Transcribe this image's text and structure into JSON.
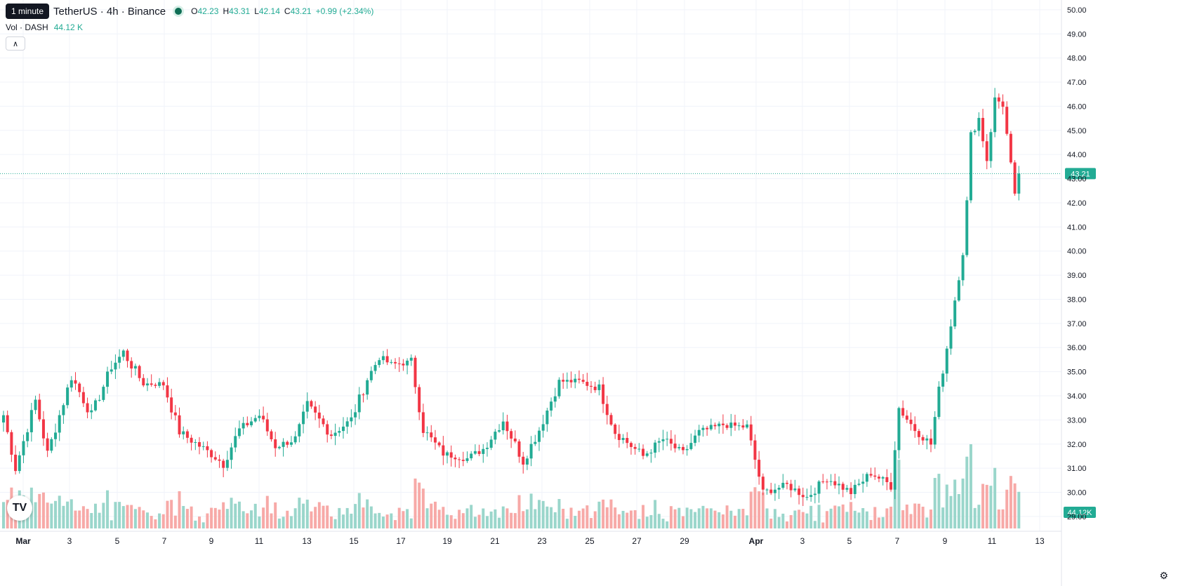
{
  "header": {
    "tooltip": "1 minute",
    "title": "TetherUS · 4h · Binance",
    "ohlc": {
      "o_label": "O",
      "o": "42.23",
      "h_label": "H",
      "h": "43.31",
      "l_label": "L",
      "l": "42.14",
      "c_label": "C",
      "c": "43.21",
      "change": "+0.99 (+2.34%)"
    },
    "volume_label": "Vol · DASH",
    "volume_value": "44.12 K"
  },
  "logo": {
    "icon": "tradingview-logo-icon",
    "text": "TV"
  },
  "settings_icon": "gear-icon",
  "colors": {
    "up": "#22ab94",
    "down": "#f23645",
    "vol_up": "#9ad6cb",
    "vol_down": "#f7a9a7",
    "grid": "#f0f3fa",
    "price_line": "#22ab94"
  },
  "chart_data": {
    "type": "candlestick",
    "timeframe": "4h",
    "ylim": [
      28.3,
      50.2
    ],
    "y_ticks": [
      "50.00",
      "49.00",
      "48.00",
      "47.00",
      "46.00",
      "45.00",
      "44.00",
      "43.00",
      "42.00",
      "41.00",
      "40.00",
      "39.00",
      "38.00",
      "37.00",
      "36.00",
      "35.00",
      "34.00",
      "33.00",
      "32.00",
      "31.00",
      "30.00",
      "29.00"
    ],
    "x_ticks": [
      {
        "label": "Mar",
        "bold": true
      },
      {
        "label": "3"
      },
      {
        "label": "5"
      },
      {
        "label": "7"
      },
      {
        "label": "9"
      },
      {
        "label": "11"
      },
      {
        "label": "13"
      },
      {
        "label": "15"
      },
      {
        "label": "17"
      },
      {
        "label": "19"
      },
      {
        "label": "21"
      },
      {
        "label": "23"
      },
      {
        "label": "25"
      },
      {
        "label": "27"
      },
      {
        "label": "29"
      },
      {
        "label": "Apr",
        "bold": true
      },
      {
        "label": "3"
      },
      {
        "label": "5"
      },
      {
        "label": "7"
      },
      {
        "label": "9"
      },
      {
        "label": "11"
      },
      {
        "label": "13"
      }
    ],
    "current_price": "43.21",
    "current_volume": "44.12K",
    "anchors": [
      {
        "bar": 0,
        "price": 33.2
      },
      {
        "bar": 3,
        "price": 31.0
      },
      {
        "bar": 8,
        "price": 33.8
      },
      {
        "bar": 11,
        "price": 31.6
      },
      {
        "bar": 17,
        "price": 34.8
      },
      {
        "bar": 22,
        "price": 33.2
      },
      {
        "bar": 27,
        "price": 35.2
      },
      {
        "bar": 30,
        "price": 35.8
      },
      {
        "bar": 35,
        "price": 34.5
      },
      {
        "bar": 40,
        "price": 34.5
      },
      {
        "bar": 44,
        "price": 32.5
      },
      {
        "bar": 51,
        "price": 31.7
      },
      {
        "bar": 55,
        "price": 31.2
      },
      {
        "bar": 59,
        "price": 32.6
      },
      {
        "bar": 64,
        "price": 33.2
      },
      {
        "bar": 68,
        "price": 31.9
      },
      {
        "bar": 73,
        "price": 32.2
      },
      {
        "bar": 76,
        "price": 33.6
      },
      {
        "bar": 82,
        "price": 32.4
      },
      {
        "bar": 87,
        "price": 33.0
      },
      {
        "bar": 91,
        "price": 34.7
      },
      {
        "bar": 94,
        "price": 35.6
      },
      {
        "bar": 97,
        "price": 35.3
      },
      {
        "bar": 102,
        "price": 35.4
      },
      {
        "bar": 105,
        "price": 32.6
      },
      {
        "bar": 110,
        "price": 31.6
      },
      {
        "bar": 116,
        "price": 31.4
      },
      {
        "bar": 120,
        "price": 31.8
      },
      {
        "bar": 125,
        "price": 33.0
      },
      {
        "bar": 130,
        "price": 31.3
      },
      {
        "bar": 134,
        "price": 32.6
      },
      {
        "bar": 139,
        "price": 34.6
      },
      {
        "bar": 144,
        "price": 34.6
      },
      {
        "bar": 149,
        "price": 34.3
      },
      {
        "bar": 153,
        "price": 32.5
      },
      {
        "bar": 160,
        "price": 31.5
      },
      {
        "bar": 165,
        "price": 32.2
      },
      {
        "bar": 170,
        "price": 31.6
      },
      {
        "bar": 174,
        "price": 32.5
      },
      {
        "bar": 180,
        "price": 32.8
      },
      {
        "bar": 186,
        "price": 32.7
      },
      {
        "bar": 190,
        "price": 30.0
      },
      {
        "bar": 196,
        "price": 30.3
      },
      {
        "bar": 201,
        "price": 29.8
      },
      {
        "bar": 206,
        "price": 30.6
      },
      {
        "bar": 212,
        "price": 30.0
      },
      {
        "bar": 217,
        "price": 30.8
      },
      {
        "bar": 222,
        "price": 30.3
      },
      {
        "bar": 224,
        "price": 33.5
      },
      {
        "bar": 228,
        "price": 32.6
      },
      {
        "bar": 232,
        "price": 32.0
      },
      {
        "bar": 234,
        "price": 34.2
      },
      {
        "bar": 236,
        "price": 36.0
      },
      {
        "bar": 238,
        "price": 38.0
      },
      {
        "bar": 240,
        "price": 40.0
      },
      {
        "bar": 241,
        "price": 42.0
      },
      {
        "bar": 242,
        "price": 44.8
      },
      {
        "bar": 244,
        "price": 45.5
      },
      {
        "bar": 246,
        "price": 43.8
      },
      {
        "bar": 248,
        "price": 46.3
      },
      {
        "bar": 250,
        "price": 46.1
      },
      {
        "bar": 252,
        "price": 43.5
      },
      {
        "bar": 253,
        "price": 42.2
      },
      {
        "bar": 254,
        "price": 43.21
      }
    ],
    "bar_count": 255
  }
}
